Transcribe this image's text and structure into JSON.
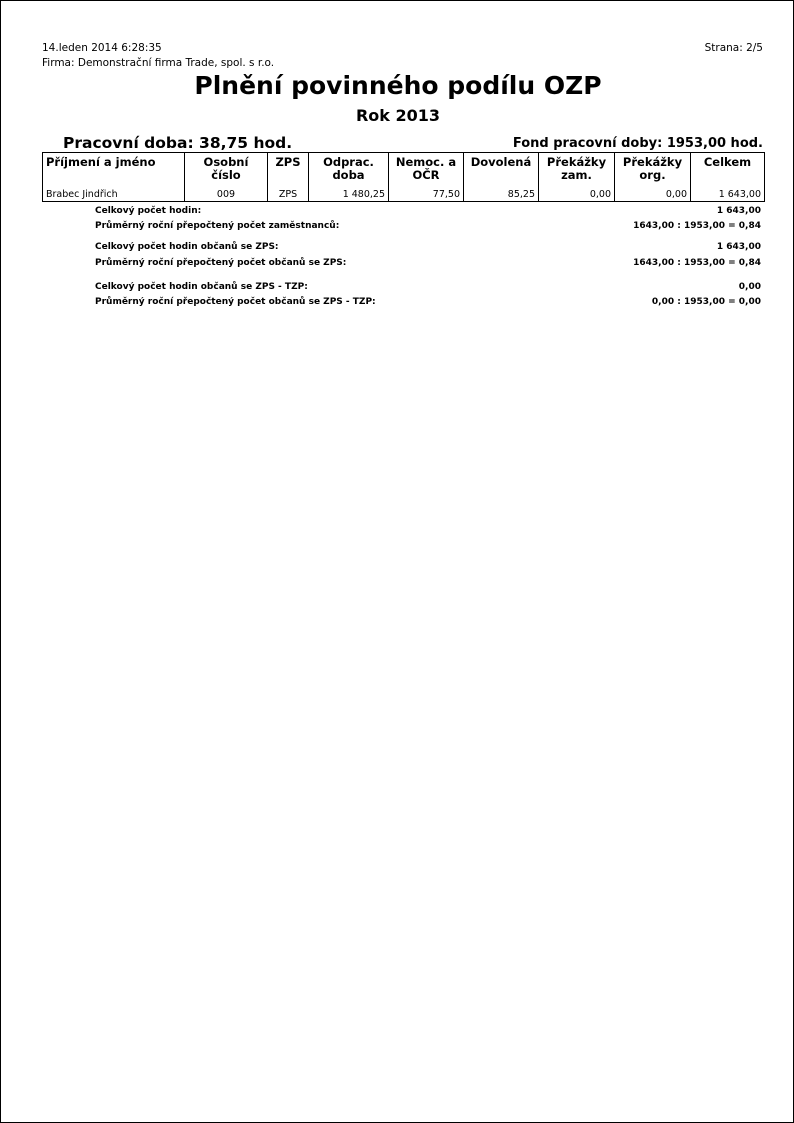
{
  "header": {
    "datetime": "14.leden 2014  6:28:35",
    "company": "Firma: Demonstrační firma Trade, spol. s r.o.",
    "page": "Strana: 2/5"
  },
  "title": "Plnění povinného podílu OZP",
  "subtitle": "Rok 2013",
  "work_time": "Pracovní doba: 38,75 hod.",
  "fund": "Fond pracovní doby: 1953,00 hod.",
  "table": {
    "columns": [
      [
        "Příjmení a jméno",
        ""
      ],
      [
        "Osobní číslo",
        ""
      ],
      [
        "ZPS",
        ""
      ],
      [
        "Odprac.",
        "doba"
      ],
      [
        "Nemoc. a",
        "OČR"
      ],
      [
        "Dovolená",
        ""
      ],
      [
        "Překážky",
        "zam."
      ],
      [
        "Překážky",
        "org."
      ],
      [
        "Celkem",
        ""
      ]
    ],
    "rows": [
      [
        "Brabec Jindřich",
        "009",
        "ZPS",
        "1 480,25",
        "77,50",
        "85,25",
        "0,00",
        "0,00",
        "1 643,00"
      ]
    ]
  },
  "summary": [
    {
      "label": "Celkový počet hodin:",
      "value": "1 643,00"
    },
    {
      "label": "Průměrný roční přepočtený počet zaměstnanců:",
      "value": "1643,00 : 1953,00 = 0,84"
    },
    {
      "label": "Celkový počet hodin občanů se ZPS:",
      "value": "1 643,00"
    },
    {
      "label": "Průměrný roční přepočtený počet občanů se ZPS:",
      "value": "1643,00 : 1953,00 = 0,84"
    },
    {
      "label": "Celkový počet hodin občanů se ZPS - TZP:",
      "value": "0,00"
    },
    {
      "label": "Průměrný roční přepočtený počet občanů se ZPS - TZP:",
      "value": "0,00 : 1953,00 = 0,00"
    }
  ]
}
